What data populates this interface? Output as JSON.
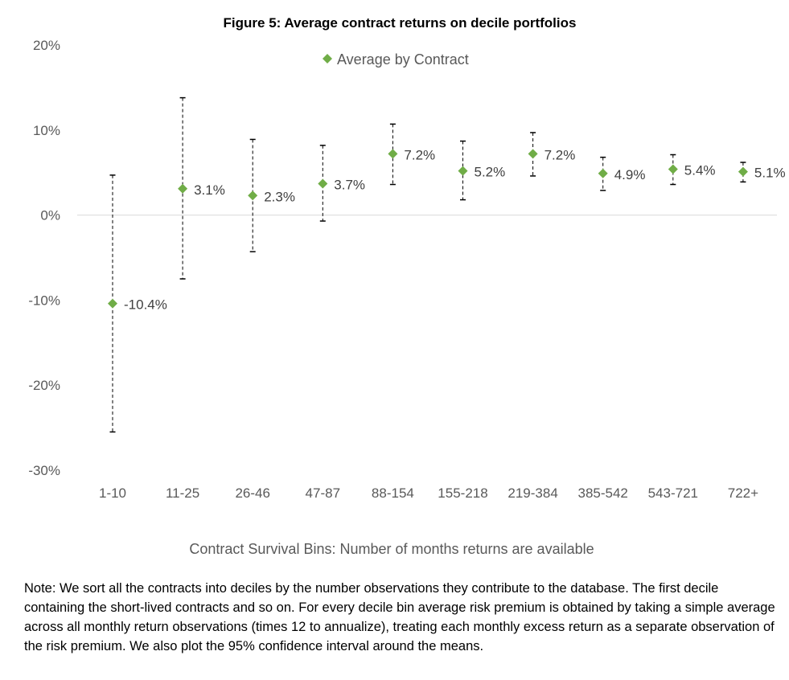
{
  "chart_data": {
    "type": "scatter",
    "title": "Figure 5: Average contract returns on decile portfolios",
    "xlabel": "Contract Survival Bins: Number of months returns are available",
    "ylabel": "",
    "ylim": [
      -30,
      20
    ],
    "yticks": [
      "20%",
      "10%",
      "0%",
      "-10%",
      "-20%",
      "-30%"
    ],
    "ytick_values": [
      20,
      10,
      0,
      -10,
      -20,
      -30
    ],
    "categories": [
      "1-10",
      "11-25",
      "26-46",
      "47-87",
      "88-154",
      "155-218",
      "219-384",
      "385-542",
      "543-721",
      "722+"
    ],
    "series": [
      {
        "name": "Average by Contract",
        "values": [
          -10.4,
          3.1,
          2.3,
          3.7,
          7.2,
          5.2,
          7.2,
          4.9,
          5.4,
          5.1
        ],
        "labels": [
          "-10.4%",
          "3.1%",
          "2.3%",
          "3.7%",
          "7.2%",
          "5.2%",
          "7.2%",
          "4.9%",
          "5.4%",
          "5.1%"
        ],
        "ci_upper": [
          4.7,
          13.8,
          8.9,
          8.2,
          10.7,
          8.7,
          9.7,
          6.8,
          7.1,
          6.2
        ],
        "ci_lower": [
          -25.5,
          -7.5,
          -4.3,
          -0.7,
          3.6,
          1.8,
          4.6,
          2.9,
          3.6,
          3.9
        ]
      }
    ],
    "legend": "top",
    "grid": false,
    "colors": {
      "marker": "#70AD47",
      "errorbar": "#000000",
      "zeroline": "#D9D9D9"
    }
  },
  "note": "Note: We sort all the contracts into deciles by the number observations they contribute to the database. The first decile containing the short-lived contracts and so on. For every decile bin average risk premium is obtained by taking a simple average across all monthly return observations (times 12 to annualize), treating each monthly excess return as a separate observation of the risk premium. We also plot the 95% confidence interval around the means."
}
